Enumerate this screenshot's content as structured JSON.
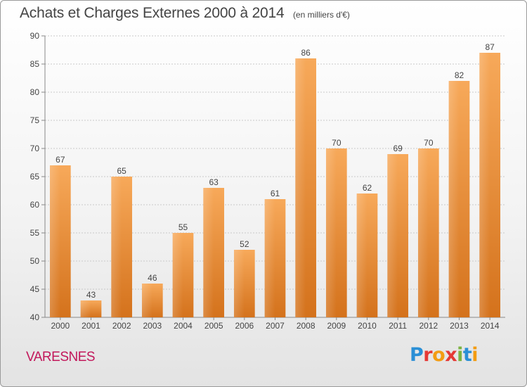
{
  "title": "Achats et Charges Externes 2000 à 2014",
  "subtitle": "(en milliers d'€)",
  "commune": "VARESNES",
  "logo": {
    "letters": [
      {
        "char": "P",
        "color": "#2a8fd6"
      },
      {
        "char": "r",
        "color": "#e53935"
      },
      {
        "char": "o",
        "color": "#f39c12"
      },
      {
        "char": "x",
        "color": "#e53935"
      },
      {
        "char": "i",
        "color": "#7cb342"
      },
      {
        "char": "t",
        "color": "#2a8fd6"
      },
      {
        "char": "i",
        "color": "#f39c12"
      }
    ]
  },
  "colors": {
    "bar_light": "#f7a95a",
    "bar_dark": "#d4721c",
    "commune": "#c2185b"
  },
  "chart_data": {
    "type": "bar",
    "categories": [
      "2000",
      "2001",
      "2002",
      "2003",
      "2004",
      "2005",
      "2006",
      "2007",
      "2008",
      "2009",
      "2010",
      "2011",
      "2012",
      "2013",
      "2014"
    ],
    "values": [
      67,
      43,
      65,
      46,
      55,
      63,
      52,
      61,
      86,
      70,
      62,
      69,
      70,
      82,
      87
    ],
    "ylim": [
      40,
      90
    ],
    "yticks": [
      40,
      45,
      50,
      55,
      60,
      65,
      70,
      75,
      80,
      85,
      90
    ],
    "xlabel": "",
    "ylabel": "",
    "grid": true,
    "data_labels": true
  }
}
